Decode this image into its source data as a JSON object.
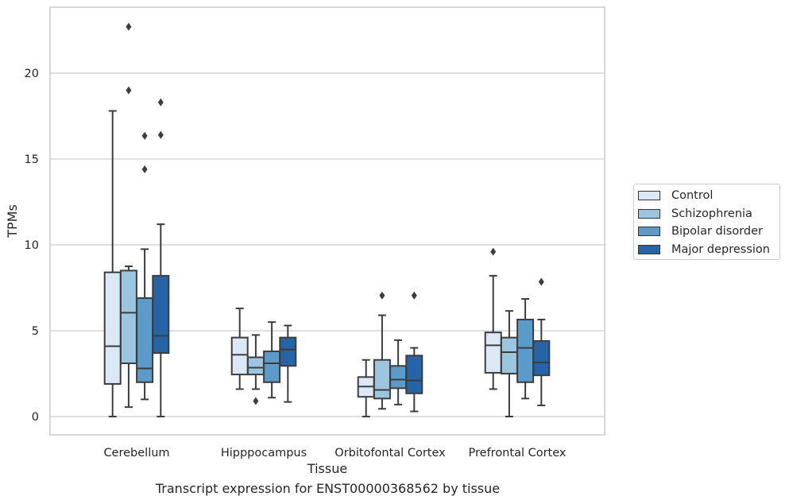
{
  "chart_data": {
    "type": "box",
    "caption": "Transcript expression for ENST00000368562 by tissue",
    "xlabel": "Tissue",
    "ylabel": "TPMs",
    "ylim": [
      -1.1,
      23.9
    ],
    "yticks": [
      0,
      5,
      10,
      15,
      20
    ],
    "grid": "horizontal",
    "legend_position": "right",
    "categories": [
      "Cerebellum",
      "Hipppocampus",
      "Orbitofontal Cortex",
      "Prefrontal Cortex"
    ],
    "series": [
      {
        "name": "Control",
        "color": "#dbe8f5",
        "boxes": [
          {
            "whisker_low": 0.0,
            "q1": 1.9,
            "median": 4.1,
            "q3": 8.4,
            "whisker_high": 17.8,
            "outliers": []
          },
          {
            "whisker_low": 1.6,
            "q1": 2.45,
            "median": 3.6,
            "q3": 4.6,
            "whisker_high": 6.3,
            "outliers": []
          },
          {
            "whisker_low": 0.0,
            "q1": 1.15,
            "median": 1.75,
            "q3": 2.3,
            "whisker_high": 3.3,
            "outliers": []
          },
          {
            "whisker_low": 1.6,
            "q1": 2.55,
            "median": 4.15,
            "q3": 4.9,
            "whisker_high": 8.2,
            "outliers": [
              9.6
            ]
          }
        ]
      },
      {
        "name": "Schizophrenia",
        "color": "#9cc5df",
        "boxes": [
          {
            "whisker_low": 0.55,
            "q1": 3.1,
            "median": 6.05,
            "q3": 8.5,
            "whisker_high": 8.75,
            "outliers": [
              19.0,
              22.7
            ]
          },
          {
            "whisker_low": 1.6,
            "q1": 2.45,
            "median": 2.85,
            "q3": 3.45,
            "whisker_high": 4.75,
            "outliers": [
              0.9
            ]
          },
          {
            "whisker_low": 0.45,
            "q1": 1.05,
            "median": 1.55,
            "q3": 3.3,
            "whisker_high": 5.9,
            "outliers": [
              7.05
            ]
          },
          {
            "whisker_low": 0.0,
            "q1": 2.5,
            "median": 3.75,
            "q3": 4.6,
            "whisker_high": 6.15,
            "outliers": []
          }
        ]
      },
      {
        "name": "Bipolar disorder",
        "color": "#5a9bc9",
        "boxes": [
          {
            "whisker_low": 1.0,
            "q1": 2.0,
            "median": 2.8,
            "q3": 6.9,
            "whisker_high": 9.75,
            "outliers": [
              14.4,
              16.35
            ]
          },
          {
            "whisker_low": 1.1,
            "q1": 2.0,
            "median": 3.1,
            "q3": 3.8,
            "whisker_high": 5.5,
            "outliers": []
          },
          {
            "whisker_low": 0.7,
            "q1": 1.65,
            "median": 2.15,
            "q3": 2.95,
            "whisker_high": 4.45,
            "outliers": []
          },
          {
            "whisker_low": 1.05,
            "q1": 2.0,
            "median": 4.0,
            "q3": 5.65,
            "whisker_high": 6.85,
            "outliers": []
          }
        ]
      },
      {
        "name": "Major depression",
        "color": "#2564a7",
        "boxes": [
          {
            "whisker_low": 0.0,
            "q1": 3.7,
            "median": 4.7,
            "q3": 8.2,
            "whisker_high": 11.2,
            "outliers": [
              16.4,
              18.3
            ]
          },
          {
            "whisker_low": 0.85,
            "q1": 2.95,
            "median": 3.9,
            "q3": 4.6,
            "whisker_high": 5.3,
            "outliers": []
          },
          {
            "whisker_low": 0.3,
            "q1": 1.35,
            "median": 2.1,
            "q3": 3.55,
            "whisker_high": 4.0,
            "outliers": [
              7.05
            ]
          },
          {
            "whisker_low": 0.65,
            "q1": 2.4,
            "median": 3.15,
            "q3": 4.4,
            "whisker_high": 5.65,
            "outliers": [
              7.85
            ]
          }
        ]
      }
    ]
  }
}
